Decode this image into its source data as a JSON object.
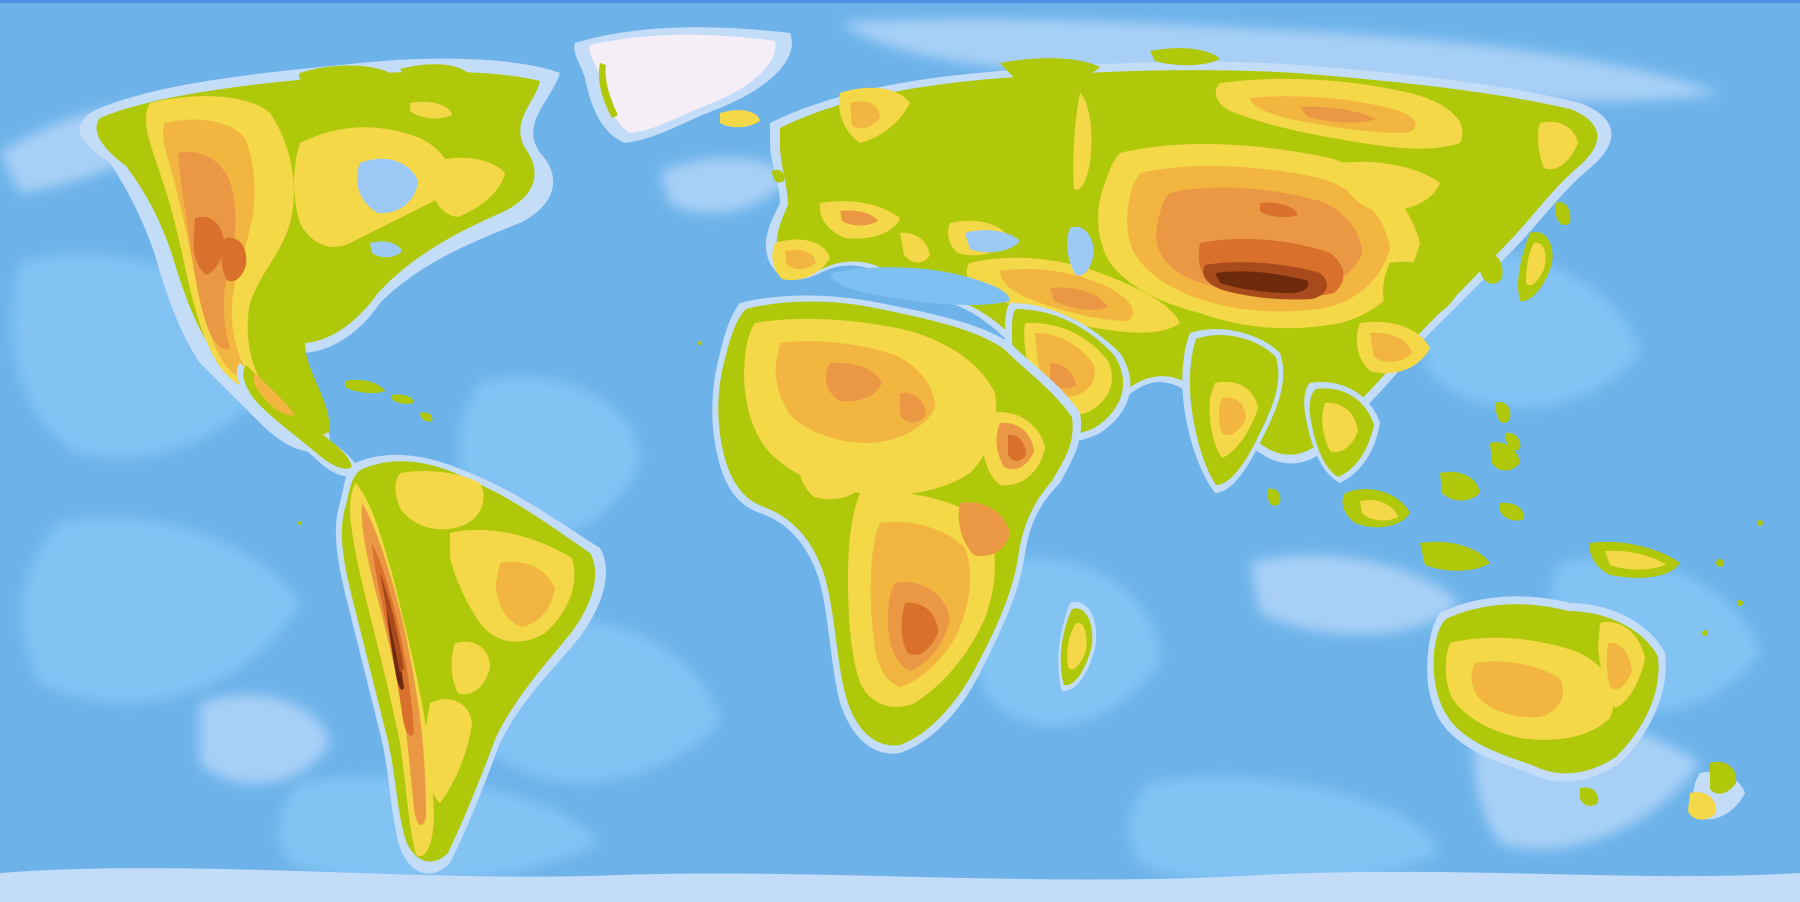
{
  "map": {
    "kind": "physical world map",
    "labels_visible": false,
    "colors": {
      "ocean_deep": "#6db3ea",
      "ocean_mid": "#7ec0f2",
      "ocean_shelf": "#9cc9f6",
      "shelf_pale": "#c3dcf8",
      "ice": "#f6eef7",
      "lowland": "#afc80a",
      "hill": "#f4d848",
      "upland": "#f2b540",
      "plateau": "#eb9844",
      "mountain": "#d9702c",
      "high_mountain": "#a84a1c",
      "summit": "#6e2a0d"
    },
    "regions": [
      "greenland",
      "north-america",
      "south-america",
      "europe-asia",
      "africa",
      "arabian-peninsula",
      "india",
      "southeast-asia",
      "japan",
      "madagascar",
      "australia",
      "new-zealand",
      "new-guinea",
      "antarctic-edge"
    ]
  }
}
